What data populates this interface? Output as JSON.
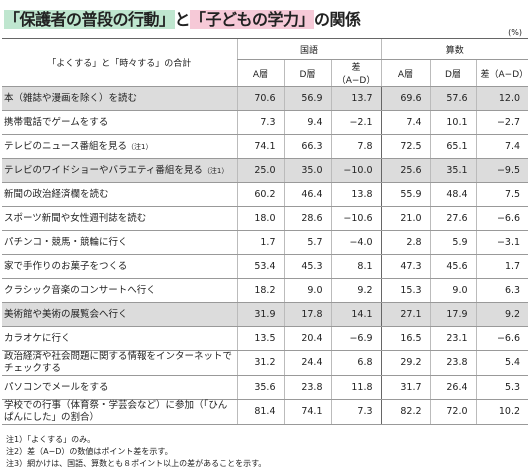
{
  "title": {
    "parts": [
      {
        "text": "「保護者の普段の行動」",
        "highlight": "green"
      },
      {
        "text": "と",
        "highlight": null
      },
      {
        "text": "「子どもの学力」",
        "highlight": "pink"
      },
      {
        "text": "の関係",
        "highlight": null
      }
    ]
  },
  "unit": "(%)",
  "table": {
    "corner": "「よくする」と「時々する」の合計",
    "groups": [
      "国語",
      "算数"
    ],
    "subheaders": [
      "A層",
      "D層",
      "差（A−D）",
      "A層",
      "D層",
      "差（A−D）"
    ],
    "rows": [
      {
        "label": "本（雑誌や漫画を除く）を読む",
        "note": null,
        "values": [
          "70.6",
          "56.9",
          "13.7",
          "69.6",
          "57.6",
          "12.0"
        ],
        "shaded": true
      },
      {
        "label": "携帯電話でゲームをする",
        "note": null,
        "values": [
          "7.3",
          "9.4",
          "−2.1",
          "7.4",
          "10.1",
          "−2.7"
        ],
        "shaded": false
      },
      {
        "label": "テレビのニュース番組を見る",
        "note": "（注1）",
        "values": [
          "74.1",
          "66.3",
          "7.8",
          "72.5",
          "65.1",
          "7.4"
        ],
        "shaded": false
      },
      {
        "label": "テレビのワイドショーやバラエティ番組を見る",
        "note": "（注1）",
        "values": [
          "25.0",
          "35.0",
          "−10.0",
          "25.6",
          "35.1",
          "−9.5"
        ],
        "shaded": true
      },
      {
        "label": "新聞の政治経済欄を読む",
        "note": null,
        "values": [
          "60.2",
          "46.4",
          "13.8",
          "55.9",
          "48.4",
          "7.5"
        ],
        "shaded": false
      },
      {
        "label": "スポーツ新聞や女性週刊誌を読む",
        "note": null,
        "values": [
          "18.0",
          "28.6",
          "−10.6",
          "21.0",
          "27.6",
          "−6.6"
        ],
        "shaded": false
      },
      {
        "label": "パチンコ・競馬・競輪に行く",
        "note": null,
        "values": [
          "1.7",
          "5.7",
          "−4.0",
          "2.8",
          "5.9",
          "−3.1"
        ],
        "shaded": false
      },
      {
        "label": "家で手作りのお菓子をつくる",
        "note": null,
        "values": [
          "53.4",
          "45.3",
          "8.1",
          "47.3",
          "45.6",
          "1.7"
        ],
        "shaded": false
      },
      {
        "label": "クラシック音楽のコンサートへ行く",
        "note": null,
        "values": [
          "18.2",
          "9.0",
          "9.2",
          "15.3",
          "9.0",
          "6.3"
        ],
        "shaded": false
      },
      {
        "label": "美術館や美術の展覧会へ行く",
        "note": null,
        "values": [
          "31.9",
          "17.8",
          "14.1",
          "27.1",
          "17.9",
          "9.2"
        ],
        "shaded": true
      },
      {
        "label": "カラオケに行く",
        "note": null,
        "values": [
          "13.5",
          "20.4",
          "−6.9",
          "16.5",
          "23.1",
          "−6.6"
        ],
        "shaded": false
      },
      {
        "label": "政治経済や社会問題に関する情報をインターネットでチェックする",
        "note": null,
        "values": [
          "31.2",
          "24.4",
          "6.8",
          "29.2",
          "23.8",
          "5.4"
        ],
        "shaded": false
      },
      {
        "label": "パソコンでメールをする",
        "note": null,
        "values": [
          "35.6",
          "23.8",
          "11.8",
          "31.7",
          "26.4",
          "5.3"
        ],
        "shaded": false
      },
      {
        "label": "学校での行事（体育祭・学芸会など）に参加（「ひんぱんにした」の割合）",
        "note": null,
        "values": [
          "81.4",
          "74.1",
          "7.3",
          "82.2",
          "72.0",
          "10.2"
        ],
        "shaded": false
      }
    ]
  },
  "notes": [
    "注1）「よくする」のみ。",
    "注2）差（A−D）の数値はポイント差を示す。",
    "注3）網かけは、国語、算数とも８ポイント以上の差があることを示す。"
  ]
}
